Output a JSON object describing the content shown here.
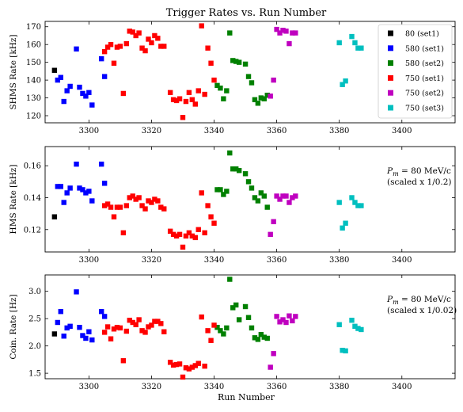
{
  "figure": {
    "title": "Trigger Rates vs. Run Number",
    "xlabel": "Run Number"
  },
  "series_styles": [
    {
      "name": "80 (set1)",
      "color": "#000000"
    },
    {
      "name": "580 (set1)",
      "color": "#0000ff"
    },
    {
      "name": "580 (set2)",
      "color": "#008000"
    },
    {
      "name": "750 (set1)",
      "color": "#ff0000"
    },
    {
      "name": "750 (set2)",
      "color": "#bf00bf"
    },
    {
      "name": "750 (set3)",
      "color": "#00bfbf"
    }
  ],
  "chart_data": [
    {
      "type": "scatter",
      "title": "Trigger Rates vs. Run Number",
      "xlabel": "",
      "ylabel": "SHMS Rate [kHz]",
      "xlim": [
        3286,
        3417
      ],
      "ylim": [
        116,
        173
      ],
      "xticks": [
        3300,
        3320,
        3340,
        3360,
        3380,
        3400
      ],
      "yticks": [
        120,
        130,
        140,
        150,
        160,
        170
      ],
      "grid": false,
      "legend": "top-right",
      "annotation": [],
      "series": [
        {
          "name": "80 (set1)",
          "x": [
            3289
          ],
          "y": [
            145.5
          ]
        },
        {
          "name": "580 (set1)",
          "x": [
            3290,
            3291,
            3292,
            3293,
            3294,
            3296,
            3297,
            3298,
            3299,
            3300,
            3301,
            3304,
            3305
          ],
          "y": [
            140,
            141.5,
            128,
            134,
            136.5,
            157.5,
            136,
            132.5,
            131,
            133,
            126,
            152,
            142
          ]
        },
        {
          "name": "580 (set2)",
          "x": [
            3341,
            3342,
            3343,
            3344,
            3345,
            3346,
            3347,
            3348,
            3350,
            3351,
            3352,
            3353,
            3354,
            3355,
            3356,
            3357
          ],
          "y": [
            137,
            135.5,
            129.5,
            134,
            166.5,
            151,
            150.5,
            150,
            149,
            142,
            138.5,
            129,
            127,
            130,
            129.5,
            131.5
          ]
        },
        {
          "name": "750 (set1)",
          "x": [
            3305,
            3306,
            3307,
            3308,
            3309,
            3310,
            3311,
            3312,
            3313,
            3314,
            3315,
            3316,
            3317,
            3318,
            3319,
            3320,
            3321,
            3322,
            3323,
            3324,
            3326,
            3327,
            3328,
            3329,
            3330,
            3331,
            3332,
            3333,
            3334,
            3335,
            3336,
            3337,
            3338,
            3339,
            3340
          ],
          "y": [
            156,
            158.5,
            160,
            149.5,
            158.5,
            159,
            132.5,
            160.5,
            167.5,
            167,
            165,
            166.5,
            158,
            156.5,
            163,
            161,
            165,
            163.5,
            159,
            159,
            133,
            129,
            128.5,
            129.5,
            119,
            128,
            133,
            129,
            126.5,
            134,
            170.5,
            132,
            158,
            149.5,
            140
          ]
        },
        {
          "name": "750 (set2)",
          "x": [
            3358,
            3359,
            3360,
            3361,
            3362,
            3363,
            3364,
            3365,
            3366
          ],
          "y": [
            131,
            140,
            168.5,
            166.5,
            168,
            167.5,
            160.5,
            166.5,
            166.5
          ]
        },
        {
          "name": "750 (set3)",
          "x": [
            3380,
            3381,
            3382,
            3384,
            3385,
            3386,
            3387
          ],
          "y": [
            161,
            137.5,
            139.5,
            164.5,
            161,
            158,
            158
          ]
        }
      ]
    },
    {
      "type": "scatter",
      "title": "",
      "xlabel": "",
      "ylabel": "HMS Rate [kHz]",
      "xlim": [
        3286,
        3417
      ],
      "ylim": [
        0.106,
        0.172
      ],
      "xticks": [
        3300,
        3320,
        3340,
        3360,
        3380,
        3400
      ],
      "yticks": [
        0.12,
        0.14,
        0.16
      ],
      "grid": false,
      "legend": "none",
      "annotation": [
        "$P_m = 80$ MeV/c",
        "(scaled x 1/0.2)"
      ],
      "series": [
        {
          "name": "80 (set1)",
          "x": [
            3289
          ],
          "y": [
            0.128
          ]
        },
        {
          "name": "580 (set1)",
          "x": [
            3290,
            3291,
            3292,
            3293,
            3294,
            3296,
            3297,
            3298,
            3299,
            3300,
            3301,
            3304,
            3305
          ],
          "y": [
            0.147,
            0.147,
            0.137,
            0.143,
            0.146,
            0.161,
            0.146,
            0.145,
            0.143,
            0.144,
            0.138,
            0.161,
            0.149
          ]
        },
        {
          "name": "580 (set2)",
          "x": [
            3341,
            3342,
            3343,
            3344,
            3345,
            3346,
            3347,
            3348,
            3350,
            3351,
            3352,
            3353,
            3354,
            3355,
            3356,
            3357
          ],
          "y": [
            0.145,
            0.145,
            0.142,
            0.144,
            0.168,
            0.158,
            0.158,
            0.157,
            0.155,
            0.15,
            0.146,
            0.14,
            0.138,
            0.143,
            0.141,
            0.134
          ]
        },
        {
          "name": "750 (set1)",
          "x": [
            3305,
            3306,
            3307,
            3308,
            3309,
            3310,
            3311,
            3312,
            3313,
            3314,
            3315,
            3316,
            3317,
            3318,
            3319,
            3320,
            3321,
            3322,
            3323,
            3324,
            3326,
            3327,
            3328,
            3329,
            3330,
            3331,
            3332,
            3333,
            3334,
            3335,
            3336,
            3337,
            3338,
            3339,
            3340
          ],
          "y": [
            0.135,
            0.136,
            0.134,
            0.128,
            0.134,
            0.134,
            0.118,
            0.135,
            0.14,
            0.141,
            0.139,
            0.14,
            0.135,
            0.133,
            0.138,
            0.137,
            0.139,
            0.138,
            0.134,
            0.133,
            0.119,
            0.117,
            0.116,
            0.117,
            0.109,
            0.116,
            0.118,
            0.116,
            0.115,
            0.12,
            0.143,
            0.118,
            0.135,
            0.128,
            0.124
          ]
        },
        {
          "name": "750 (set2)",
          "x": [
            3358,
            3359,
            3360,
            3361,
            3362,
            3363,
            3364,
            3365,
            3366
          ],
          "y": [
            0.117,
            0.125,
            0.141,
            0.139,
            0.141,
            0.141,
            0.137,
            0.14,
            0.141
          ]
        },
        {
          "name": "750 (set3)",
          "x": [
            3380,
            3381,
            3382,
            3384,
            3385,
            3386,
            3387
          ],
          "y": [
            0.137,
            0.121,
            0.124,
            0.14,
            0.137,
            0.135,
            0.135
          ]
        }
      ]
    },
    {
      "type": "scatter",
      "title": "",
      "xlabel": "Run Number",
      "ylabel": "Coin. Rate [Hz]",
      "xlim": [
        3286,
        3417
      ],
      "ylim": [
        1.4,
        3.3
      ],
      "xticks": [
        3300,
        3320,
        3340,
        3360,
        3380,
        3400
      ],
      "yticks": [
        1.5,
        2.0,
        2.5,
        3.0
      ],
      "grid": false,
      "legend": "none",
      "annotation": [
        "$P_m = 80$ MeV/c",
        "(scaled x 1/0.02)"
      ],
      "series": [
        {
          "name": "80 (set1)",
          "x": [
            3289
          ],
          "y": [
            2.22
          ]
        },
        {
          "name": "580 (set1)",
          "x": [
            3290,
            3291,
            3292,
            3293,
            3294,
            3296,
            3297,
            3298,
            3299,
            3300,
            3301,
            3304,
            3305
          ],
          "y": [
            2.43,
            2.63,
            2.18,
            2.33,
            2.36,
            2.99,
            2.34,
            2.19,
            2.14,
            2.26,
            2.11,
            2.63,
            2.54
          ]
        },
        {
          "name": "580 (set2)",
          "x": [
            3341,
            3342,
            3343,
            3344,
            3345,
            3346,
            3347,
            3348,
            3350,
            3351,
            3352,
            3353,
            3354,
            3355,
            3356,
            3357
          ],
          "y": [
            2.34,
            2.28,
            2.22,
            2.33,
            3.22,
            2.7,
            2.75,
            2.48,
            2.72,
            2.52,
            2.33,
            2.15,
            2.12,
            2.21,
            2.16,
            2.14
          ]
        },
        {
          "name": "750 (set1)",
          "x": [
            3305,
            3306,
            3307,
            3308,
            3309,
            3310,
            3311,
            3312,
            3313,
            3314,
            3315,
            3316,
            3317,
            3318,
            3319,
            3320,
            3321,
            3322,
            3323,
            3324,
            3326,
            3327,
            3328,
            3329,
            3330,
            3331,
            3332,
            3333,
            3334,
            3335,
            3336,
            3337,
            3338,
            3339,
            3340
          ],
          "y": [
            2.25,
            2.35,
            2.13,
            2.31,
            2.34,
            2.33,
            1.73,
            2.27,
            2.47,
            2.43,
            2.39,
            2.48,
            2.28,
            2.25,
            2.35,
            2.38,
            2.45,
            2.45,
            2.41,
            2.26,
            1.7,
            1.65,
            1.66,
            1.67,
            1.43,
            1.6,
            1.58,
            1.61,
            1.64,
            1.68,
            2.53,
            1.63,
            2.28,
            2.1,
            2.38
          ]
        },
        {
          "name": "750 (set2)",
          "x": [
            3358,
            3359,
            3360,
            3361,
            3362,
            3363,
            3364,
            3365,
            3366
          ],
          "y": [
            1.61,
            1.86,
            2.54,
            2.44,
            2.48,
            2.43,
            2.55,
            2.46,
            2.54
          ]
        },
        {
          "name": "750 (set3)",
          "x": [
            3380,
            3381,
            3382,
            3384,
            3385,
            3386,
            3387
          ],
          "y": [
            2.39,
            1.92,
            1.91,
            2.47,
            2.36,
            2.32,
            2.3
          ]
        }
      ]
    }
  ]
}
